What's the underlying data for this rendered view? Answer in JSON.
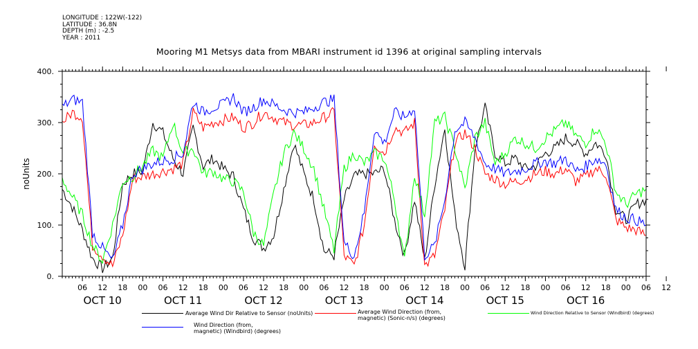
{
  "header": {
    "meta_lines": [
      "LONGITUDE : 122W(-122)",
      "LATITUDE : 36.8N",
      "DEPTH (m) : -2.5",
      "YEAR : 2011"
    ],
    "title": "Mooring M1 Metsys data from MBARI instrument id 1396 at original sampling intervals"
  },
  "chart_data": {
    "type": "line",
    "title": "Mooring M1 Metsys data from MBARI instrument id 1396 at original sampling intervals",
    "ylabel": "noUnits",
    "xlabel": "",
    "ylim": [
      0,
      400
    ],
    "yticks": [
      "0.",
      "100.",
      "200.",
      "300.",
      "400."
    ],
    "xlim_hours": [
      0,
      174
    ],
    "x_tick_labels": [
      "06",
      "12",
      "18",
      "00",
      "06",
      "12",
      "18",
      "00",
      "06",
      "12",
      "18",
      "00",
      "06",
      "12",
      "18",
      "00",
      "06",
      "12",
      "18",
      "00",
      "06",
      "12",
      "18",
      "00",
      "06",
      "12",
      "18",
      "00",
      "06",
      "12"
    ],
    "x_day_labels": [
      "OCT 10",
      "OCT 11",
      "OCT 12",
      "OCT 13",
      "OCT 14",
      "OCT 15",
      "OCT 16"
    ],
    "grid": false,
    "series": [
      {
        "name": "Average Wind Dir Relative to Sensor (noUnits)",
        "color": "#000000",
        "x": [
          0,
          3,
          6,
          9,
          12,
          15,
          18,
          21,
          24,
          27,
          30,
          33,
          36,
          39,
          42,
          45,
          48,
          51,
          54,
          57,
          60,
          63,
          66,
          69,
          72,
          75,
          78,
          81,
          84,
          87,
          90,
          93,
          96,
          99,
          102,
          105,
          108,
          111,
          114,
          117,
          120,
          123,
          126,
          129,
          132,
          135,
          138,
          141,
          144,
          147,
          150,
          153,
          156,
          159,
          162,
          165,
          168,
          171,
          174
        ],
        "values": [
          170,
          135,
          90,
          35,
          15,
          35,
          180,
          200,
          205,
          300,
          280,
          230,
          200,
          290,
          215,
          230,
          210,
          195,
          130,
          75,
          55,
          80,
          170,
          260,
          200,
          150,
          50,
          40,
          150,
          195,
          200,
          200,
          210,
          110,
          40,
          150,
          30,
          180,
          290,
          120,
          20,
          250,
          330,
          240,
          220,
          230,
          210,
          215,
          240,
          250,
          270,
          260,
          240,
          260,
          240,
          130,
          110,
          140,
          150
        ]
      },
      {
        "name": "Average Wind Direction (from, magnetic) (Sonic-n/s) (degrees)",
        "color": "#ff0000",
        "x": [
          0,
          3,
          6,
          9,
          12,
          15,
          18,
          21,
          24,
          27,
          30,
          33,
          36,
          39,
          42,
          45,
          48,
          51,
          54,
          57,
          60,
          63,
          66,
          69,
          72,
          75,
          78,
          81,
          84,
          87,
          90,
          93,
          96,
          99,
          102,
          105,
          108,
          111,
          114,
          117,
          120,
          123,
          126,
          129,
          132,
          135,
          138,
          141,
          144,
          147,
          150,
          153,
          156,
          159,
          162,
          165,
          168,
          171,
          174
        ],
        "values": [
          300,
          320,
          310,
          60,
          40,
          20,
          80,
          190,
          195,
          200,
          205,
          210,
          220,
          320,
          290,
          300,
          305,
          310,
          290,
          300,
          320,
          310,
          300,
          295,
          295,
          300,
          310,
          320,
          40,
          20,
          100,
          260,
          240,
          290,
          280,
          300,
          20,
          40,
          130,
          260,
          280,
          250,
          200,
          190,
          180,
          185,
          190,
          200,
          205,
          200,
          210,
          185,
          195,
          210,
          200,
          110,
          95,
          90,
          80
        ]
      },
      {
        "name": "Wind Direction Relative to Sensor (Windbird) (degrees)",
        "color": "#00ff00",
        "x": [
          0,
          3,
          6,
          9,
          12,
          15,
          18,
          21,
          24,
          27,
          30,
          33,
          36,
          39,
          42,
          45,
          48,
          51,
          54,
          57,
          60,
          63,
          66,
          69,
          72,
          75,
          78,
          81,
          84,
          87,
          90,
          93,
          96,
          99,
          102,
          105,
          108,
          111,
          114,
          117,
          120,
          123,
          126,
          129,
          132,
          135,
          138,
          141,
          144,
          147,
          150,
          153,
          156,
          159,
          162,
          165,
          168,
          171,
          174
        ],
        "values": [
          190,
          155,
          120,
          60,
          30,
          100,
          185,
          195,
          215,
          245,
          230,
          300,
          240,
          250,
          200,
          205,
          190,
          185,
          165,
          85,
          60,
          160,
          240,
          280,
          250,
          210,
          130,
          50,
          210,
          240,
          220,
          240,
          230,
          150,
          30,
          200,
          120,
          300,
          310,
          250,
          170,
          270,
          300,
          220,
          240,
          270,
          260,
          250,
          270,
          285,
          300,
          275,
          260,
          290,
          260,
          165,
          140,
          160,
          170
        ]
      },
      {
        "name": "Wind Direction (from, magnetic) (Windbird) (degrees)",
        "color": "#0000ff",
        "x": [
          0,
          3,
          6,
          9,
          12,
          15,
          18,
          21,
          24,
          27,
          30,
          33,
          36,
          39,
          42,
          45,
          48,
          51,
          54,
          57,
          60,
          63,
          66,
          69,
          72,
          75,
          78,
          81,
          84,
          87,
          90,
          93,
          96,
          99,
          102,
          105,
          108,
          111,
          114,
          117,
          120,
          123,
          126,
          129,
          132,
          135,
          138,
          141,
          144,
          147,
          150,
          153,
          156,
          159,
          162,
          165,
          168,
          171,
          174
        ],
        "values": [
          330,
          345,
          340,
          85,
          55,
          30,
          100,
          200,
          210,
          220,
          225,
          230,
          240,
          340,
          320,
          330,
          335,
          350,
          320,
          330,
          345,
          335,
          325,
          320,
          320,
          330,
          340,
          345,
          65,
          40,
          125,
          285,
          260,
          320,
          310,
          330,
          40,
          60,
          150,
          285,
          300,
          270,
          220,
          210,
          200,
          205,
          210,
          220,
          225,
          220,
          230,
          205,
          215,
          230,
          220,
          130,
          115,
          110,
          100
        ]
      }
    ]
  },
  "legend": [
    {
      "label_lines": [
        "Average Wind Dir Relative to Sensor (noUnits)"
      ],
      "color": "#000000"
    },
    {
      "label_lines": [
        "Average Wind Direction (from,",
        "magnetic) (Sonic-n/s) (degrees)"
      ],
      "color": "#ff0000"
    },
    {
      "label_lines": [
        "Wind Direction Relative to Sensor (Windbird) (degrees)"
      ],
      "color": "#00ff00"
    },
    {
      "label_lines": [
        "Wind Direction (from,",
        "magnetic) (Windbird) (degrees)"
      ],
      "color": "#0000ff"
    }
  ]
}
